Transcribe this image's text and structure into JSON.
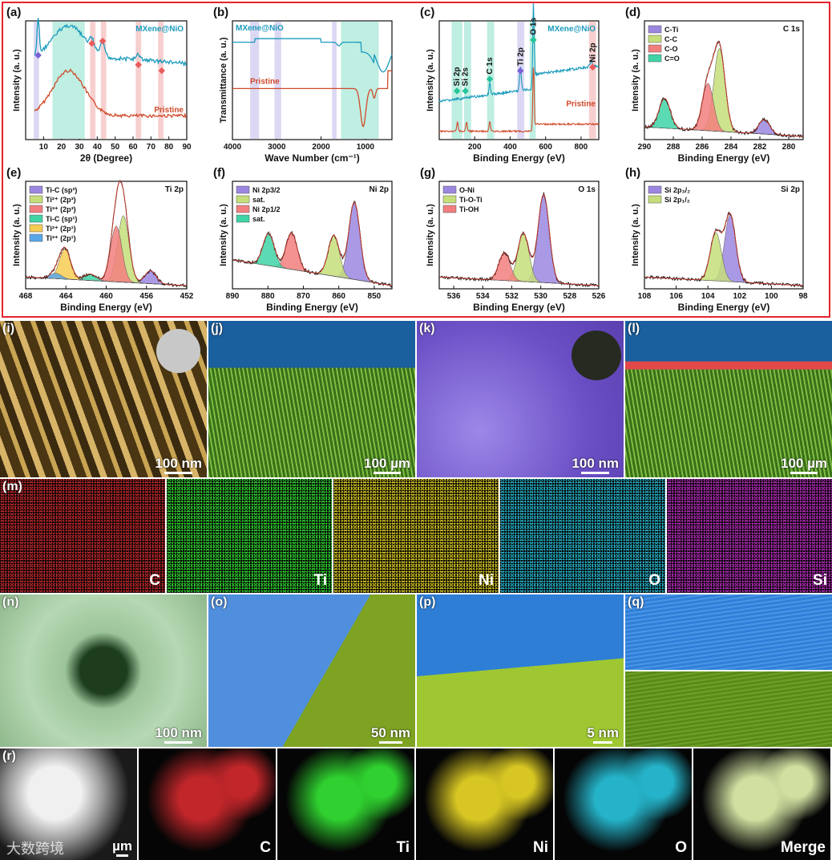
{
  "colors": {
    "frame": "#e5232c",
    "mxene_line": "#1b9bbd",
    "pristine_line": "#cf4a2a",
    "fit_line": "#c0392b"
  },
  "chart_data": [
    {
      "panel": "(a)",
      "type": "line",
      "xlabel": "2θ (Degree)",
      "ylabel": "Intensity (a. u.)",
      "xlim": [
        0,
        90
      ],
      "xticks": [
        10,
        20,
        30,
        40,
        50,
        60,
        70,
        80,
        90
      ],
      "series": [
        {
          "name": "MXene@NiO"
        },
        {
          "name": "Pristine"
        }
      ]
    },
    {
      "panel": "(b)",
      "type": "line",
      "xlabel": "Wave Number (cm⁻¹)",
      "ylabel": "Transmittance (a. u.)",
      "xlim": [
        4000,
        400
      ],
      "xticks": [
        4000,
        3000,
        2000,
        1000
      ],
      "series": [
        {
          "name": "MXene@NiO"
        },
        {
          "name": "Pristine"
        }
      ]
    },
    {
      "panel": "(c)",
      "type": "line",
      "xlabel": "Binding Energy (eV)",
      "ylabel": "Intensity (a. u.)",
      "xlim": [
        0,
        900
      ],
      "xticks": [
        200,
        400,
        600,
        800
      ],
      "peak_labels": [
        "Si 2p",
        "Si 2s",
        "C 1s",
        "Ti 2p",
        "O 1s",
        "Ni 2p"
      ],
      "series": [
        {
          "name": "MXene@NiO"
        },
        {
          "name": "Pristine"
        }
      ]
    },
    {
      "panel": "(d)",
      "type": "area",
      "title": "C 1s",
      "xlabel": "Binding Energy (eV)",
      "ylabel": "Intensity (a. u.)",
      "xlim": [
        290,
        279
      ],
      "xticks": [
        290,
        288,
        286,
        284,
        282,
        280
      ],
      "series": [
        {
          "name": "C-Ti",
          "center": 281.7,
          "amp": 0.12
        },
        {
          "name": "C-C",
          "center": 284.8,
          "amp": 0.7
        },
        {
          "name": "C-O",
          "center": 285.6,
          "amp": 0.4
        },
        {
          "name": "C=O",
          "center": 288.6,
          "amp": 0.25
        }
      ]
    },
    {
      "panel": "(e)",
      "type": "area",
      "title": "Ti 2p",
      "xlabel": "Binding Energy (eV)",
      "ylabel": "Intensity (a. u.)",
      "xlim": [
        468,
        452
      ],
      "xticks": [
        468,
        464,
        460,
        456,
        452
      ],
      "series": [
        {
          "name": "Ti-C (sp³)",
          "center": 455.6,
          "amp": 0.12
        },
        {
          "name": "Ti²⁺ (2p³)",
          "center": 458.3,
          "amp": 0.62
        },
        {
          "name": "Ti³⁺ (2p³)",
          "center": 459.0,
          "amp": 0.52
        },
        {
          "name": "Ti-C (sp¹)",
          "center": 461.6,
          "amp": 0.06
        },
        {
          "name": "Ti²⁺ (2p¹)",
          "center": 464.1,
          "amp": 0.28
        },
        {
          "name": "Ti³⁺ (2p¹)",
          "center": 465.0,
          "amp": 0.05
        }
      ]
    },
    {
      "panel": "(f)",
      "type": "area",
      "title": "Ni 2p",
      "xlabel": "Binding Energy (eV)",
      "ylabel": "Intensity (a. u.)",
      "xlim": [
        890,
        845
      ],
      "xticks": [
        890,
        880,
        870,
        860,
        850
      ],
      "series": [
        {
          "name": "Ni 2p3/2",
          "center": 855.6,
          "amp": 0.72
        },
        {
          "name": "sat.",
          "center": 861.4,
          "amp": 0.38
        },
        {
          "name": "Ni 2p1/2",
          "center": 873.3,
          "amp": 0.34
        },
        {
          "name": "sat.",
          "center": 879.8,
          "amp": 0.3
        }
      ]
    },
    {
      "panel": "(g)",
      "type": "area",
      "title": "O 1s",
      "xlabel": "Binding Energy (eV)",
      "ylabel": "Intensity (a. u.)",
      "xlim": [
        537,
        526
      ],
      "xticks": [
        536,
        534,
        532,
        530,
        528,
        526
      ],
      "series": [
        {
          "name": "O-Ni",
          "center": 529.8,
          "amp": 0.82
        },
        {
          "name": "Ti-O-Ti",
          "center": 531.2,
          "amp": 0.45
        },
        {
          "name": "Ti-OH",
          "center": 532.5,
          "amp": 0.26
        }
      ]
    },
    {
      "panel": "(h)",
      "type": "area",
      "title": "Si 2p",
      "xlabel": "Binding Energy (eV)",
      "ylabel": "Intensity (a. u.)",
      "xlim": [
        108,
        98
      ],
      "xticks": [
        108,
        106,
        104,
        102,
        100,
        98
      ],
      "series": [
        {
          "name": "Si 2p₃/₂",
          "center": 102.6,
          "amp": 0.62
        },
        {
          "name": "Si 2p₁/₂",
          "center": 103.5,
          "amp": 0.45
        }
      ]
    }
  ],
  "images": [
    {
      "panel": "(i)",
      "scale": "100 nm"
    },
    {
      "panel": "(j)",
      "scale": "100 µm"
    },
    {
      "panel": "(k)",
      "scale": "100 nm"
    },
    {
      "panel": "(l)",
      "scale": "100 µm"
    },
    {
      "panel": "(m)",
      "elements": [
        "C",
        "Ti",
        "Ni",
        "O",
        "Si"
      ]
    },
    {
      "panel": "(n)",
      "scale": "100 nm"
    },
    {
      "panel": "(o)",
      "scale": "50 nm"
    },
    {
      "panel": "(p)",
      "scale": "5 nm"
    },
    {
      "panel": "(q)"
    },
    {
      "panel": "(r)",
      "scale": "µm",
      "elements": [
        "C",
        "Ti",
        "Ni",
        "O",
        "Merge"
      ]
    }
  ],
  "watermark": "大数跨境"
}
